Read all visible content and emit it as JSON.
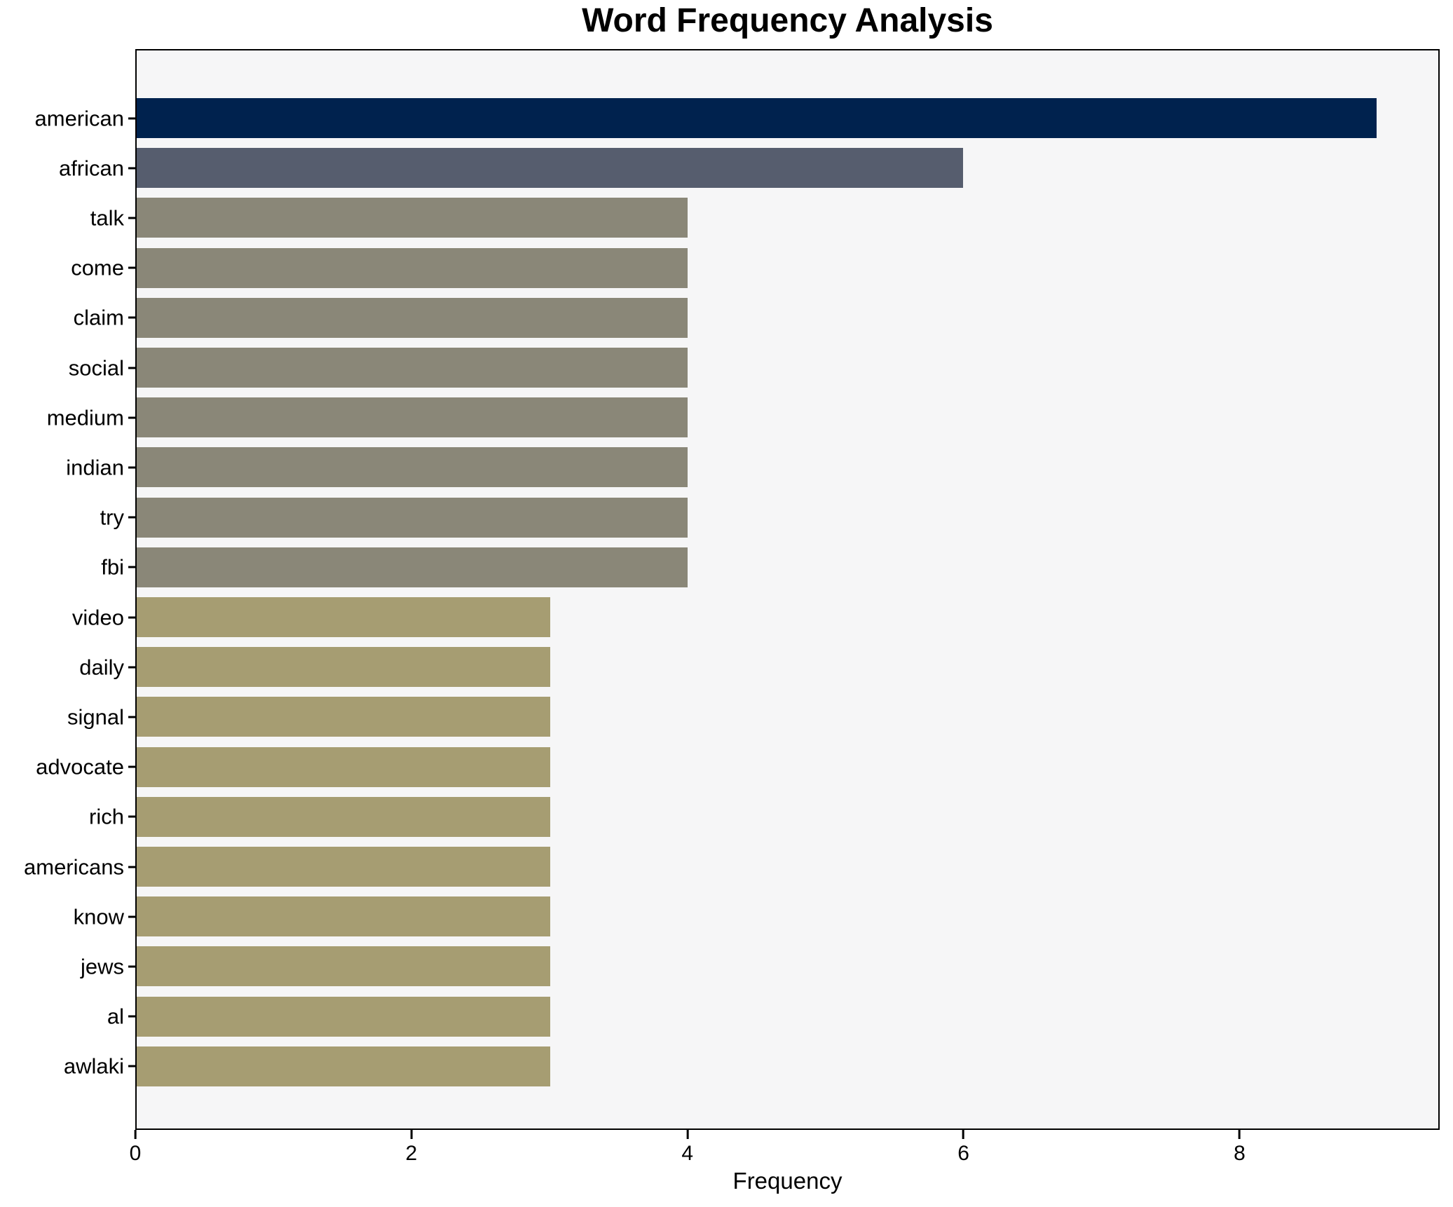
{
  "chart_data": {
    "type": "bar",
    "orientation": "horizontal",
    "title": "Word Frequency Analysis",
    "xlabel": "Frequency",
    "ylabel": "",
    "categories": [
      "american",
      "african",
      "talk",
      "come",
      "claim",
      "social",
      "medium",
      "indian",
      "try",
      "fbi",
      "video",
      "daily",
      "signal",
      "advocate",
      "rich",
      "americans",
      "know",
      "jews",
      "al",
      "awlaki"
    ],
    "values": [
      9,
      6,
      4,
      4,
      4,
      4,
      4,
      4,
      4,
      4,
      3,
      3,
      3,
      3,
      3,
      3,
      3,
      3,
      3,
      3
    ],
    "bar_colors": [
      "#00224e",
      "#565d6e",
      "#8a8778",
      "#8a8778",
      "#8a8778",
      "#8a8778",
      "#8a8778",
      "#8a8778",
      "#8a8778",
      "#8a8778",
      "#a69d72",
      "#a69d72",
      "#a69d72",
      "#a69d72",
      "#a69d72",
      "#a69d72",
      "#a69d72",
      "#a69d72",
      "#a69d72",
      "#a69d72"
    ],
    "xlim": [
      0,
      9.45
    ],
    "xticks": [
      0,
      2,
      4,
      6,
      8
    ],
    "grid": false,
    "legend": null
  },
  "colors": {
    "plot_background": "#f6f6f7",
    "figure_background": "#ffffff",
    "spine": "#000000",
    "text": "#000000"
  }
}
